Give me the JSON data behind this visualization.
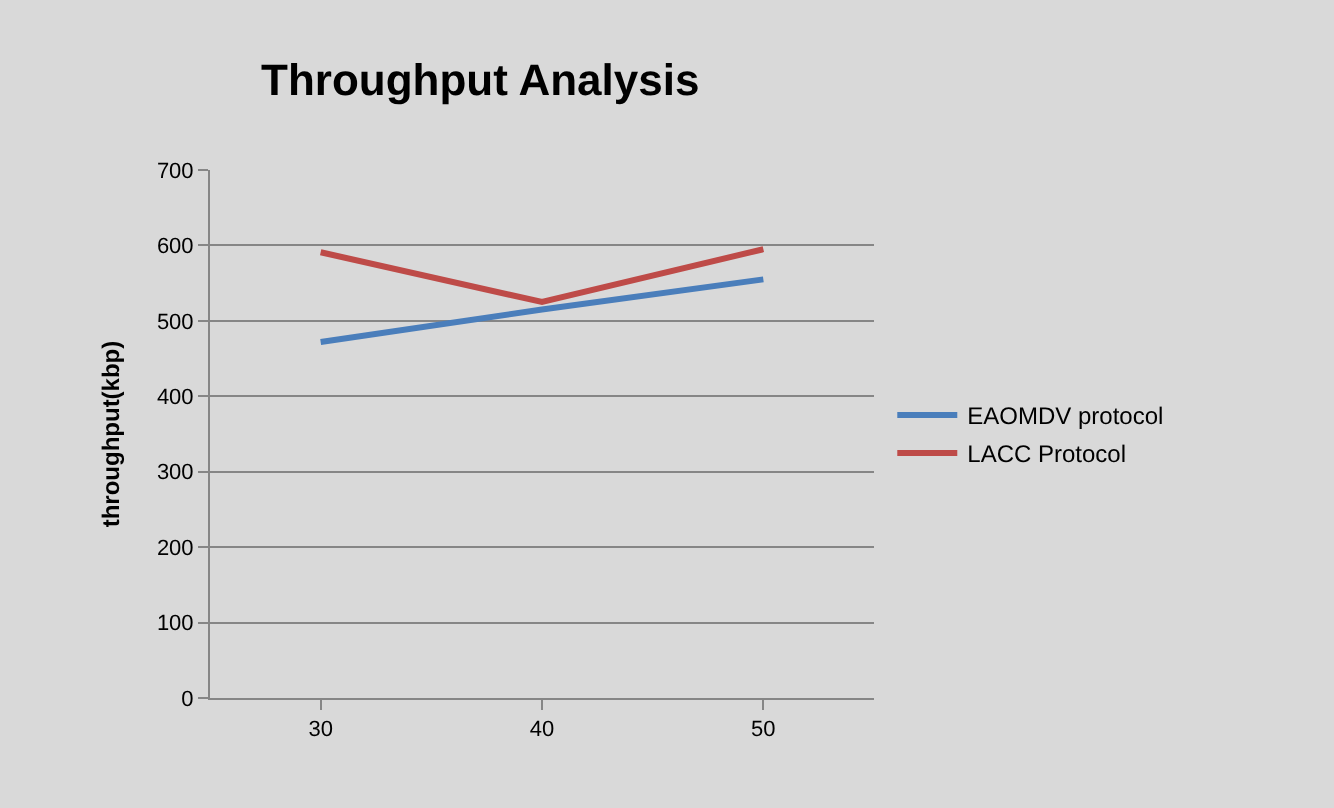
{
  "chart_data": {
    "type": "line",
    "title": "Throughput Analysis",
    "ylabel": "throughput(kbp)",
    "categories": [
      "30",
      "40",
      "50"
    ],
    "series": [
      {
        "name": "EAOMDV protocol",
        "color": "#4a7ebb",
        "values": [
          472,
          515,
          555
        ]
      },
      {
        "name": "LACC Protocol",
        "color": "#be4b48",
        "values": [
          591,
          525,
          595
        ]
      }
    ],
    "ylim": [
      0,
      700
    ],
    "yticks": [
      0,
      100,
      200,
      300,
      400,
      500,
      600,
      700
    ],
    "grid": "y",
    "legend": "right",
    "marker": "none",
    "line_style": "solid"
  }
}
